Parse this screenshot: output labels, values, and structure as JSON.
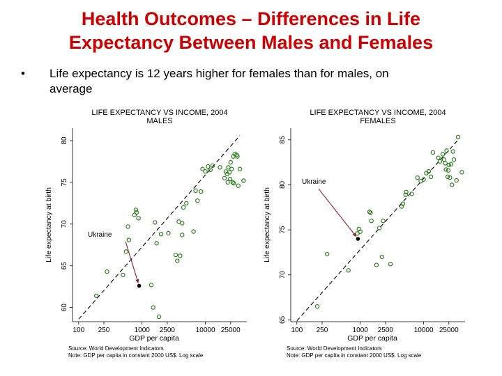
{
  "slide": {
    "title_line1": "Health Outcomes – Differences in Life",
    "title_line2": "Expectancy Between Males and Females",
    "bullet_marker": "•",
    "bullet_line1": "Life expectancy is 12 years higher for females than for males, on",
    "bullet_line2": "average",
    "title_color": "#cc0000"
  },
  "chart_data": [
    {
      "type": "scatter",
      "title_line1": "LIFE EXPECTANCY VS INCOME, 2004",
      "title_line2": "MALES",
      "xlabel": "GDP per capita",
      "ylabel": "Life expectancy at birth",
      "x_scale": "log",
      "xlim": [
        80,
        45000
      ],
      "ylim": [
        58.3,
        81.5
      ],
      "x_ticks": [
        100,
        250,
        1000,
        2500,
        10000,
        25000
      ],
      "x_tick_labels": [
        "100",
        "250",
        "1000",
        "2500",
        "10000",
        "25000"
      ],
      "y_ticks": [
        60,
        65,
        70,
        75,
        80
      ],
      "y_tick_labels": [
        "60",
        "65",
        "70",
        "75",
        "80"
      ],
      "source_note": "Source: World Development Indicators",
      "gdp_note": "Note: GDP per capita in constant 2000 US$. Log scale",
      "annotation": {
        "label": "Ukraine",
        "x": 900,
        "y": 62.6
      },
      "trend_line": [
        [
          100,
          58.6
        ],
        [
          35000,
          80.6
        ]
      ],
      "marker_color": "#2e7d1e",
      "arrow_color": "#8b1a2b",
      "points": [
        [
          190,
          61.4
        ],
        [
          280,
          64.3
        ],
        [
          500,
          63.9
        ],
        [
          560,
          66.7
        ],
        [
          600,
          69.7
        ],
        [
          620,
          68.1
        ],
        [
          760,
          71.1
        ],
        [
          800,
          71.7
        ],
        [
          820,
          71.4
        ],
        [
          880,
          70.7
        ],
        [
          1400,
          62.7
        ],
        [
          1500,
          60.0
        ],
        [
          1600,
          70.2
        ],
        [
          1700,
          67.7
        ],
        [
          1850,
          58.9
        ],
        [
          2000,
          68.8
        ],
        [
          2600,
          68.9
        ],
        [
          3400,
          66.3
        ],
        [
          3600,
          65.6
        ],
        [
          3800,
          70.3
        ],
        [
          4000,
          66.2
        ],
        [
          4300,
          68.7
        ],
        [
          4300,
          70.1
        ],
        [
          4500,
          72.0
        ],
        [
          5000,
          72.5
        ],
        [
          6500,
          69.1
        ],
        [
          7000,
          74.0
        ],
        [
          7500,
          72.8
        ],
        [
          8500,
          73.9
        ],
        [
          9000,
          76.6
        ],
        [
          10000,
          76.3
        ],
        [
          11000,
          76.9
        ],
        [
          12000,
          76.5
        ],
        [
          13000,
          77.0
        ],
        [
          17000,
          76.8
        ],
        [
          20000,
          75.5
        ],
        [
          21000,
          76.3
        ],
        [
          22000,
          76.0
        ],
        [
          22500,
          75.0
        ],
        [
          23000,
          76.8
        ],
        [
          24000,
          76.2
        ],
        [
          24500,
          75.4
        ],
        [
          25000,
          77.4
        ],
        [
          26000,
          76.6
        ],
        [
          27000,
          75.0
        ],
        [
          27500,
          78.1
        ],
        [
          28000,
          74.9
        ],
        [
          29000,
          78.4
        ],
        [
          31000,
          78.3
        ],
        [
          32000,
          78.1
        ],
        [
          33000,
          74.6
        ],
        [
          35000,
          76.6
        ],
        [
          40000,
          75.2
        ]
      ]
    },
    {
      "type": "scatter",
      "title_line1": "LIFE EXPECTANCY VS INCOME, 2004",
      "title_line2": "FEMALES",
      "xlabel": "GDP per capita",
      "ylabel": "Life expectancy at birth",
      "x_scale": "log",
      "xlim": [
        80,
        45000
      ],
      "ylim": [
        64.8,
        86.3
      ],
      "x_ticks": [
        100,
        250,
        1000,
        2500,
        10000,
        25000
      ],
      "x_tick_labels": [
        "100",
        "250",
        "1000",
        "2500",
        "10000",
        "25000"
      ],
      "y_ticks": [
        65,
        70,
        75,
        80,
        85
      ],
      "y_tick_labels": [
        "65",
        "70",
        "75",
        "80",
        "85"
      ],
      "source_note": "Source: World Development Indicators",
      "gdp_note": "Note: GDP per capita in constant 2000 US$. Log scale",
      "annotation": {
        "label": "Ukraine",
        "x": 920,
        "y": 74.0
      },
      "trend_line": [
        [
          100,
          64.9
        ],
        [
          35000,
          85.0
        ]
      ],
      "marker_color": "#2e7d1e",
      "arrow_color": "#8b1a2b",
      "points": [
        [
          210,
          66.5
        ],
        [
          300,
          72.3
        ],
        [
          650,
          70.5
        ],
        [
          900,
          74.6
        ],
        [
          950,
          75.1
        ],
        [
          1000,
          74.8
        ],
        [
          1400,
          77.0
        ],
        [
          1450,
          76.9
        ],
        [
          1500,
          76.0
        ],
        [
          1800,
          71.1
        ],
        [
          2000,
          75.2
        ],
        [
          2200,
          72.0
        ],
        [
          2300,
          76.0
        ],
        [
          3000,
          71.2
        ],
        [
          4500,
          77.6
        ],
        [
          4700,
          77.9
        ],
        [
          5200,
          78.9
        ],
        [
          5300,
          79.2
        ],
        [
          6500,
          79.0
        ],
        [
          8000,
          80.8
        ],
        [
          9000,
          80.4
        ],
        [
          10000,
          80.6
        ],
        [
          11000,
          81.3
        ],
        [
          12000,
          81.5
        ],
        [
          13000,
          80.9
        ],
        [
          14000,
          83.6
        ],
        [
          17000,
          83.0
        ],
        [
          18000,
          82.6
        ],
        [
          20000,
          83.4
        ],
        [
          21000,
          82.8
        ],
        [
          22000,
          82.4
        ],
        [
          22500,
          81.7
        ],
        [
          23000,
          83.8
        ],
        [
          24000,
          80.9
        ],
        [
          24500,
          81.6
        ],
        [
          25000,
          82.2
        ],
        [
          26000,
          80.8
        ],
        [
          27000,
          82.3
        ],
        [
          28000,
          80.0
        ],
        [
          29000,
          83.7
        ],
        [
          30000,
          82.8
        ],
        [
          33000,
          80.5
        ],
        [
          35000,
          85.3
        ],
        [
          40000,
          81.4
        ]
      ]
    }
  ]
}
